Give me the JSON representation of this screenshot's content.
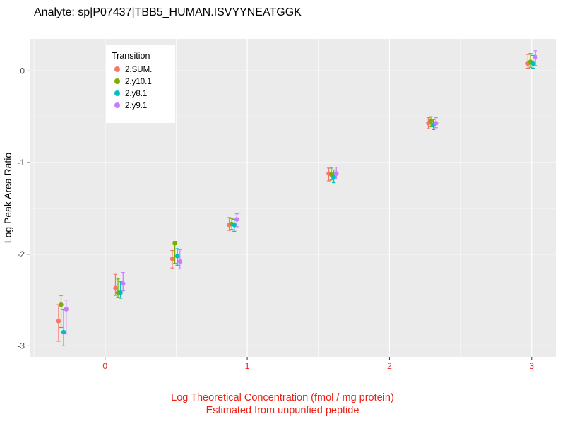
{
  "chart_data": {
    "type": "scatter",
    "title": "Analyte: sp|P07437|TBB5_HUMAN.ISVYYNEATGGK",
    "xlabel_line1": "Log Theoretical Concentration (fmol / mg protein)",
    "xlabel_line2": "Estimated from unpurified peptide",
    "ylabel": "Log Peak Area Ratio",
    "legend_title": "Transition",
    "xlim": [
      -0.53,
      3.17
    ],
    "ylim": [
      -3.12,
      0.35
    ],
    "xticks": [
      0,
      1,
      2,
      3
    ],
    "yticks": [
      0,
      -1,
      -2,
      -3
    ],
    "x_minor": [
      -0.5,
      0.5,
      1.5,
      2.5
    ],
    "y_minor": [
      -2.5,
      -1.5,
      -0.5
    ],
    "panel_bg": "#EBEBEB",
    "grid_color": "#FFFFFF",
    "x_axis_color": "#ED2015",
    "y_tick_color": "#4D4D4D",
    "tick_mark_color": "#333333",
    "legend_bg": "#FFFFFF",
    "series": [
      {
        "name": "2.SUM.",
        "color": "#F8766D",
        "points": [
          {
            "x": -0.3,
            "y": -2.73,
            "ymin": -2.95,
            "ymax": -2.55
          },
          {
            "x": 0.1,
            "y": -2.37,
            "ymin": -2.45,
            "ymax": -2.22
          },
          {
            "x": 0.5,
            "y": -2.05,
            "ymin": -2.15,
            "ymax": -1.96
          },
          {
            "x": 0.9,
            "y": -1.68,
            "ymin": -1.74,
            "ymax": -1.6
          },
          {
            "x": 1.6,
            "y": -1.12,
            "ymin": -1.2,
            "ymax": -1.06
          },
          {
            "x": 2.3,
            "y": -0.57,
            "ymin": -0.63,
            "ymax": -0.51
          },
          {
            "x": 3.0,
            "y": 0.08,
            "ymin": 0.03,
            "ymax": 0.18
          }
        ]
      },
      {
        "name": "2.y10.1",
        "color": "#7CAE00",
        "points": [
          {
            "x": -0.3,
            "y": -2.55,
            "ymin": -2.8,
            "ymax": -2.45
          },
          {
            "x": 0.1,
            "y": -2.42,
            "ymin": -2.47,
            "ymax": -2.27
          },
          {
            "x": 0.5,
            "y": -1.88,
            "ymin": -2.1,
            "ymax": -1.86
          },
          {
            "x": 0.9,
            "y": -1.67,
            "ymin": -1.73,
            "ymax": -1.61
          },
          {
            "x": 1.6,
            "y": -1.13,
            "ymin": -1.19,
            "ymax": -1.06
          },
          {
            "x": 2.3,
            "y": -0.55,
            "ymin": -0.61,
            "ymax": -0.5
          },
          {
            "x": 3.0,
            "y": 0.1,
            "ymin": 0.04,
            "ymax": 0.19
          }
        ]
      },
      {
        "name": "2.y8.1",
        "color": "#00BFC4",
        "points": [
          {
            "x": -0.3,
            "y": -2.85,
            "ymin": -3.0,
            "ymax": -2.6
          },
          {
            "x": 0.1,
            "y": -2.42,
            "ymin": -2.48,
            "ymax": -2.3
          },
          {
            "x": 0.5,
            "y": -2.02,
            "ymin": -2.12,
            "ymax": -1.94
          },
          {
            "x": 0.9,
            "y": -1.68,
            "ymin": -1.75,
            "ymax": -1.62
          },
          {
            "x": 1.6,
            "y": -1.16,
            "ymin": -1.22,
            "ymax": -1.08
          },
          {
            "x": 2.3,
            "y": -0.59,
            "ymin": -0.64,
            "ymax": -0.53
          },
          {
            "x": 3.0,
            "y": 0.08,
            "ymin": 0.03,
            "ymax": 0.17
          }
        ]
      },
      {
        "name": "2.y9.1",
        "color": "#C77CFF",
        "points": [
          {
            "x": -0.3,
            "y": -2.6,
            "ymin": -2.87,
            "ymax": -2.5
          },
          {
            "x": 0.1,
            "y": -2.32,
            "ymin": -2.4,
            "ymax": -2.2
          },
          {
            "x": 0.5,
            "y": -2.08,
            "ymin": -2.16,
            "ymax": -1.95
          },
          {
            "x": 0.9,
            "y": -1.62,
            "ymin": -1.7,
            "ymax": -1.56
          },
          {
            "x": 1.6,
            "y": -1.12,
            "ymin": -1.18,
            "ymax": -1.05
          },
          {
            "x": 2.3,
            "y": -0.57,
            "ymin": -0.62,
            "ymax": -0.51
          },
          {
            "x": 3.0,
            "y": 0.15,
            "ymin": 0.06,
            "ymax": 0.22
          }
        ]
      }
    ]
  }
}
